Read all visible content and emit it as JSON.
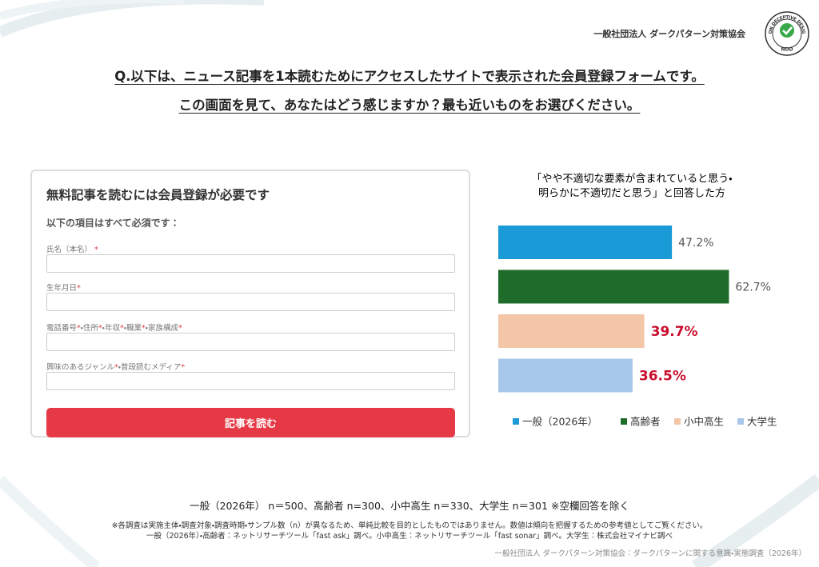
{
  "header": {
    "org": "一般社団法人 ダークパターン対策協会",
    "logo_ring": "NON DECEPTIVE DESIGN",
    "logo_abbr": "NDD"
  },
  "question": [
    "Q.以下は、ニュース記事を1本読むためにアクセスしたサイトで表示された会員登録フォームです。",
    "この画面を見て、あなたはどう感じますか？最も近いものをお選びください。"
  ],
  "form": {
    "title": "無料記事を読むには会員登録が必要です",
    "subtitle": "以下の項目はすべて必須です：",
    "fields": [
      [
        "氏名（本名） ",
        "*"
      ],
      [
        "生年月日",
        "*"
      ],
      [
        "電話番号",
        "*",
        "・住所",
        "*",
        "・年収",
        "*",
        "・職業",
        "*",
        "・家族構成",
        "*"
      ],
      [
        "興味のあるジャンル",
        "*",
        "・普段読むメディア",
        "*"
      ]
    ],
    "button": "記事を読む"
  },
  "chart_data": {
    "type": "hbar",
    "title_lines": [
      "「やや不適切な要素が含まれていると思う・",
      "明らかに不適切だと思う」と回答した方"
    ],
    "categories": [
      "一般（2026年）",
      "高齢者",
      "小中高生",
      "大学生"
    ],
    "values": [
      47.2,
      62.7,
      39.7,
      36.5
    ],
    "value_labels": [
      "47.2%",
      "62.7%",
      "39.7%",
      "36.5%"
    ],
    "colors": [
      "#1a9ad6",
      "#1e6b2a",
      "#f4c6a8",
      "#a8c8ea"
    ],
    "label_emphasis": [
      false,
      false,
      true,
      true
    ],
    "legend": "bottom"
  },
  "footer": {
    "sample": "一般（2026年） n＝500、高齢者 n=300、小中高生 n＝330、大学生 n＝301 ※空欄回答を除く",
    "notes": [
      "※各調査は実施主体・調査対象・調査時期・サンプル数（n）が異なるため、単純比較を目的としたものではありません。数値は傾向を把握するための参考値としてご覧ください。",
      "一般（2026年）・高齢者：ネットリサーチツール「fast ask」調べ。小中高生：ネットリサーチツール「fast sonar」調べ。大学生：株式会社マイナビ調べ"
    ],
    "source": "一般社団法人 ダークパターン対策協会：ダークパターンに関する意識・実態調査（2026年）"
  }
}
